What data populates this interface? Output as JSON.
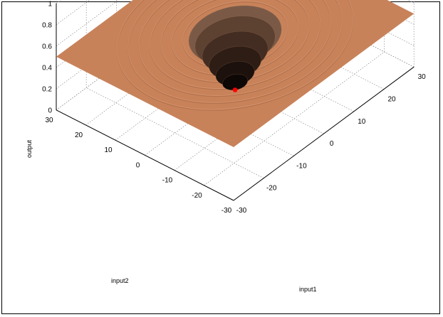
{
  "chart_data": {
    "type": "surface3d",
    "title": "",
    "xlabel": "input1",
    "ylabel": "input2",
    "zlabel": "output",
    "xlim": [
      -30,
      30
    ],
    "ylim": [
      -30,
      30
    ],
    "zlim": [
      0,
      1
    ],
    "x_ticks": [
      "-30",
      "-20",
      "-10",
      "0",
      "10",
      "20",
      "30"
    ],
    "y_ticks": [
      "-30",
      "-20",
      "-10",
      "0",
      "10",
      "20",
      "30"
    ],
    "z_ticks": [
      "0",
      "0.2",
      "0.4",
      "0.6",
      "0.8",
      "1"
    ],
    "grid": true,
    "surface": {
      "description_function": "output rises from 0 at the origin to a plateau of 0.5 in concentric stepped terraces",
      "plateau_value": 0.5,
      "minimum": {
        "x": 0,
        "y": 0,
        "z": 0
      }
    },
    "marker": {
      "x": 0,
      "y": 0,
      "z": 0,
      "color": "#ff0000"
    },
    "surface_color": "#c8825a"
  }
}
